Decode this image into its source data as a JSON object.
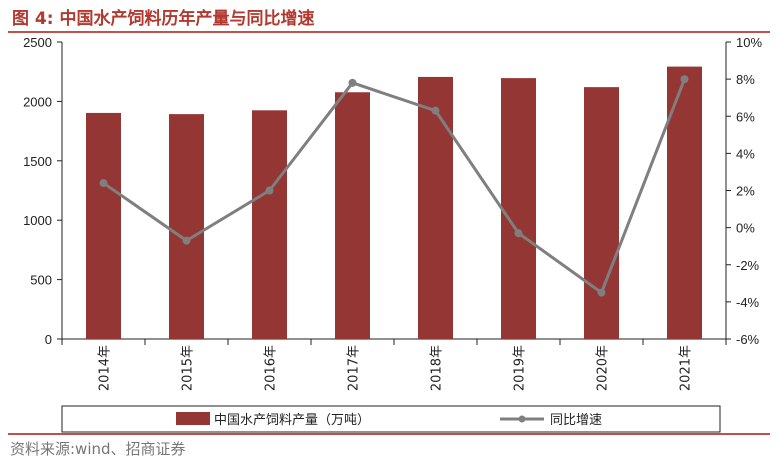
{
  "header": {
    "title": "图 4:  中国水产饲料历年产量与同比增速"
  },
  "source": "资料来源:wind、招商证券",
  "chart_data": {
    "type": "bar+line",
    "title": "中国水产饲料历年产量与同比增速",
    "categories": [
      "2014年",
      "2015年",
      "2016年",
      "2017年",
      "2018年",
      "2019年",
      "2020年",
      "2021年"
    ],
    "series": [
      {
        "name": "中国水产饲料产量（万吨）",
        "type": "bar",
        "axis": "left",
        "values": [
          1903,
          1893,
          1925,
          2077,
          2206,
          2196,
          2120,
          2293
        ],
        "color": "#943634"
      },
      {
        "name": "同比增速",
        "type": "line",
        "axis": "right",
        "values": [
          2.4,
          -0.7,
          2.0,
          7.8,
          6.3,
          -0.3,
          -3.5,
          8.0
        ],
        "color": "#7f7f7f"
      }
    ],
    "y_left": {
      "min": 0,
      "max": 2500,
      "step": 500,
      "ticks": [
        "0",
        "500",
        "1000",
        "1500",
        "2000",
        "2500"
      ]
    },
    "y_right": {
      "min": -6,
      "max": 10,
      "step": 2,
      "ticks": [
        "-6%",
        "-4%",
        "-2%",
        "0%",
        "2%",
        "4%",
        "6%",
        "8%",
        "10%"
      ]
    },
    "legend_position": "bottom"
  }
}
